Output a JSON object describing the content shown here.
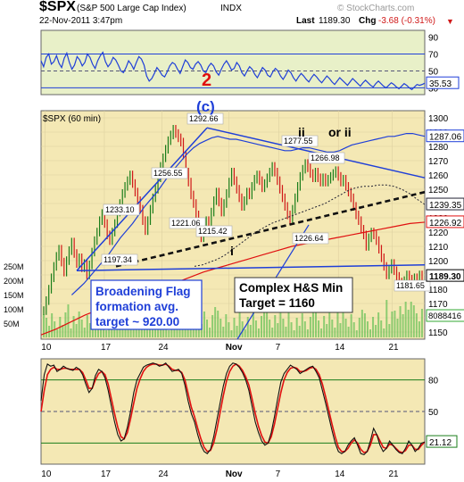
{
  "header": {
    "symbol": "$SPX",
    "name": "(S&P 500 Large Cap Index)",
    "exchange": "INDX",
    "date": "22-Nov-2011 3:47pm",
    "last_label": "Last",
    "last": "1189.30",
    "chg_label": "Chg",
    "chg": "-3.68 (-0.31%)",
    "watermark": "© StockCharts.com"
  },
  "colors": {
    "panel_bg": "#e8f0c8",
    "price_bg": "#f4e8b4",
    "blue": "#1f3fd8",
    "red": "#e01010",
    "up_bar": "#1a7d1a",
    "down_bar": "#d01818",
    "volume_green": "#3ab53a"
  },
  "chart_data": [
    {
      "type": "line",
      "panel": "top indicator",
      "yticks": [
        30,
        50,
        70,
        90
      ],
      "ylim": [
        22,
        98
      ],
      "reference_lines": [
        30,
        50,
        70
      ],
      "last_value": "35.53",
      "annotation": "2",
      "x": [
        0,
        1,
        2,
        3,
        4,
        5,
        6,
        7,
        8,
        9,
        10,
        11,
        12,
        13,
        14,
        15,
        16,
        17,
        18,
        19,
        20,
        21,
        22,
        23,
        24,
        25,
        26,
        27,
        28,
        29,
        30,
        31,
        32,
        33,
        34,
        35,
        36,
        37,
        38,
        39,
        40,
        41,
        42,
        43,
        44,
        45,
        46,
        47,
        48,
        49,
        50,
        51,
        52,
        53,
        54,
        55,
        56,
        57,
        58,
        59,
        60,
        61,
        62,
        63,
        64,
        65,
        66,
        67,
        68,
        69,
        70,
        71,
        72,
        73,
        74,
        75,
        76,
        77,
        78,
        79,
        80,
        81,
        82,
        83,
        84,
        85,
        86,
        87,
        88,
        89,
        90,
        91,
        92,
        93,
        94,
        95,
        96,
        97,
        98,
        99,
        100,
        101,
        102,
        103,
        104,
        105,
        106,
        107,
        108,
        109,
        110,
        111,
        112,
        113,
        114,
        115,
        116,
        117,
        118,
        119,
        120,
        121,
        122,
        123,
        124,
        125,
        126,
        127,
        128,
        129,
        130,
        131,
        132,
        133,
        134,
        135,
        136,
        137,
        138,
        139,
        140,
        141,
        142,
        143,
        144,
        145,
        146,
        147,
        148,
        149
      ],
      "values": [
        62,
        55,
        66,
        70,
        58,
        61,
        68,
        59,
        54,
        65,
        71,
        60,
        52,
        57,
        67,
        63,
        56,
        60,
        70,
        66,
        58,
        53,
        62,
        68,
        72,
        61,
        55,
        59,
        66,
        63,
        57,
        50,
        48,
        54,
        62,
        58,
        52,
        60,
        67,
        64,
        57,
        44,
        38,
        41,
        47,
        54,
        50,
        45,
        43,
        49,
        56,
        60,
        58,
        52,
        47,
        55,
        63,
        60,
        54,
        52,
        58,
        61,
        57,
        50,
        48,
        55,
        59,
        56,
        49,
        45,
        52,
        58,
        62,
        57,
        51,
        53,
        60,
        56,
        48,
        44,
        50,
        55,
        52,
        46,
        42,
        48,
        54,
        51,
        45,
        43,
        49,
        53,
        50,
        44,
        40,
        45,
        51,
        48,
        42,
        38,
        43,
        47,
        44,
        40,
        37,
        42,
        46,
        43,
        39,
        36,
        40,
        44,
        41,
        37,
        34,
        38,
        42,
        39,
        36,
        33,
        37,
        41,
        38,
        35,
        32,
        36,
        39,
        36,
        33,
        31,
        35,
        38,
        35,
        32,
        30,
        33,
        36,
        34,
        31,
        29,
        32,
        35,
        33,
        30,
        28,
        31,
        34,
        33,
        34,
        35.5
      ]
    },
    {
      "type": "line",
      "panel": "price",
      "title": "$SPX (60 min)",
      "yticks": [
        1150,
        1160,
        1170,
        1180,
        1190,
        1200,
        1210,
        1220,
        1230,
        1240,
        1250,
        1260,
        1270,
        1280,
        1290,
        1300
      ],
      "ylim": [
        1145,
        1305
      ],
      "xticks": [
        "10",
        "17",
        "24",
        "Nov",
        "7",
        "14",
        "21"
      ],
      "price_labels": [
        "1292.66",
        "1277.55",
        "1266.98",
        "1256.55",
        "1233.10",
        "1221.06",
        "1215.42",
        "1226.64",
        "1197.34",
        "1181.65"
      ],
      "axis_tags": [
        "1287.06",
        "1239.35",
        "1226.92",
        "1189.30"
      ],
      "annotations": [
        "(c)",
        "ii",
        "or ii",
        "i"
      ],
      "textbox_left": [
        "Broadening Flag",
        "formation avg.",
        "target ~ 920.00"
      ],
      "textbox_right": [
        "Complex H&S Min",
        "Target = 1160"
      ],
      "volume_ticks": [
        "250M",
        "200M",
        "150M",
        "100M",
        "50M"
      ],
      "volume_last": "8088416",
      "series": [
        {
          "type": "price_bars",
          "values": [
            1165,
            1172,
            1180,
            1188,
            1196,
            1203,
            1208,
            1199,
            1192,
            1200,
            1207,
            1213,
            1205,
            1198,
            1202,
            1195,
            1198,
            1190,
            1197,
            1206,
            1214,
            1220,
            1228,
            1233,
            1226,
            1218,
            1214,
            1220,
            1226,
            1234,
            1240,
            1247,
            1252,
            1256,
            1260,
            1254,
            1248,
            1242,
            1236,
            1228,
            1221,
            1228,
            1236,
            1244,
            1250,
            1258,
            1266,
            1272,
            1278,
            1284,
            1288,
            1292,
            1289,
            1286,
            1283,
            1274,
            1262,
            1255,
            1246,
            1240,
            1232,
            1224,
            1216,
            1222,
            1228,
            1226,
            1234,
            1242,
            1248,
            1241,
            1234,
            1240,
            1247,
            1255,
            1262,
            1256,
            1250,
            1244,
            1238,
            1242,
            1248,
            1246,
            1252,
            1257,
            1260,
            1256,
            1251,
            1254,
            1258,
            1262,
            1266,
            1262,
            1256,
            1250,
            1244,
            1238,
            1232,
            1228,
            1236,
            1244,
            1252,
            1259,
            1264,
            1268,
            1265,
            1261,
            1258,
            1262,
            1258,
            1255,
            1258,
            1255,
            1257,
            1259,
            1261,
            1263,
            1259,
            1255,
            1257,
            1252,
            1248,
            1244,
            1238,
            1232,
            1228,
            1222,
            1218,
            1210,
            1216,
            1220,
            1218,
            1214,
            1208,
            1202,
            1196,
            1190,
            1194,
            1198,
            1193,
            1189,
            1185,
            1182,
            1186,
            1190,
            1187,
            1184,
            1188,
            1186,
            1190,
            1189.3
          ]
        },
        {
          "name": "MA",
          "values": [
            1176,
            1180,
            1184,
            1189,
            1194,
            1199,
            1204,
            1210,
            1216,
            1221,
            1226,
            1232,
            1238,
            1243,
            1248,
            1254,
            1260,
            1265,
            1270,
            1275,
            1279,
            1282,
            1284,
            1286,
            1287,
            1286,
            1285,
            1285,
            1284,
            1283,
            1282,
            1281,
            1280,
            1279,
            1278,
            1277,
            1277,
            1278,
            1279,
            1279,
            1278,
            1277,
            1276,
            1276,
            1277,
            1279,
            1281,
            1282,
            1283,
            1284,
            1285,
            1286,
            1287,
            1287,
            1288,
            1289,
            1289,
            1288,
            1287.06
          ]
        },
        {
          "name": "MA dotted",
          "values": [
            1196,
            1197,
            1199,
            1201,
            1204,
            1208,
            1212,
            1216,
            1220,
            1223,
            1226,
            1228,
            1230,
            1232,
            1234,
            1236,
            1238,
            1240,
            1243,
            1246,
            1249,
            1251,
            1252,
            1252,
            1253,
            1253,
            1252,
            1250,
            1247,
            1243,
            1239.35
          ]
        },
        {
          "name": "MA slow",
          "values": [
            1148,
            1152,
            1157,
            1162,
            1166,
            1170,
            1173,
            1177,
            1180,
            1184,
            1188,
            1192,
            1195,
            1198,
            1201,
            1204,
            1207,
            1210,
            1212,
            1214,
            1216,
            1218,
            1220,
            1222,
            1224,
            1226,
            1226.92
          ]
        }
      ]
    },
    {
      "type": "line",
      "panel": "bottom indicator",
      "yticks": [
        20,
        50,
        80
      ],
      "ylim": [
        0,
        100
      ],
      "reference_lines": [
        20,
        50,
        80
      ],
      "last_value": "21.12",
      "xticks": [
        "10",
        "17",
        "24",
        "Nov",
        "7",
        "14",
        "21"
      ],
      "series": [
        {
          "name": "fast",
          "values": [
            60,
            85,
            95,
            93,
            94,
            88,
            90,
            93,
            91,
            90,
            89,
            92,
            90,
            85,
            76,
            68,
            72,
            84,
            90,
            88,
            82,
            70,
            55,
            40,
            28,
            22,
            24,
            35,
            50,
            68,
            80,
            86,
            92,
            94,
            95,
            96,
            95,
            93,
            94,
            96,
            92,
            88,
            89,
            90,
            86,
            75,
            60,
            48,
            40,
            28,
            18,
            12,
            10,
            14,
            26,
            42,
            58,
            74,
            86,
            93,
            96,
            95,
            92,
            87,
            80,
            70,
            55,
            40,
            30,
            22,
            18,
            20,
            30,
            45,
            62,
            78,
            86,
            90,
            94,
            92,
            90,
            86,
            88,
            90,
            92,
            93,
            88,
            82,
            70,
            58,
            45,
            32,
            20,
            12,
            10,
            12,
            18,
            22,
            25,
            18,
            10,
            9,
            12,
            22,
            34,
            28,
            18,
            12,
            15,
            22,
            18,
            14,
            11,
            10,
            15,
            22,
            18,
            12,
            15,
            20,
            21
          ]
        },
        {
          "name": "slow",
          "values": [
            50,
            70,
            85,
            90,
            92,
            90,
            90,
            91,
            91,
            90,
            90,
            90,
            90,
            87,
            80,
            72,
            72,
            80,
            86,
            88,
            85,
            76,
            62,
            48,
            35,
            26,
            24,
            30,
            43,
            58,
            72,
            81,
            88,
            92,
            94,
            95,
            95,
            94,
            94,
            95,
            93,
            90,
            89,
            89,
            87,
            80,
            67,
            54,
            45,
            34,
            24,
            16,
            12,
            13,
            20,
            33,
            49,
            65,
            79,
            88,
            93,
            95,
            93,
            89,
            83,
            75,
            62,
            48,
            36,
            27,
            21,
            20,
            26,
            38,
            53,
            68,
            80,
            87,
            91,
            92,
            91,
            88,
            88,
            89,
            91,
            92,
            90,
            85,
            76,
            64,
            51,
            38,
            26,
            16,
            12,
            12,
            15,
            20,
            23,
            20,
            14,
            11,
            12,
            18,
            28,
            28,
            22,
            16,
            15,
            19,
            18,
            15,
            12,
            11,
            13,
            18,
            18,
            14,
            14,
            18,
            21.12
          ]
        }
      ]
    }
  ]
}
